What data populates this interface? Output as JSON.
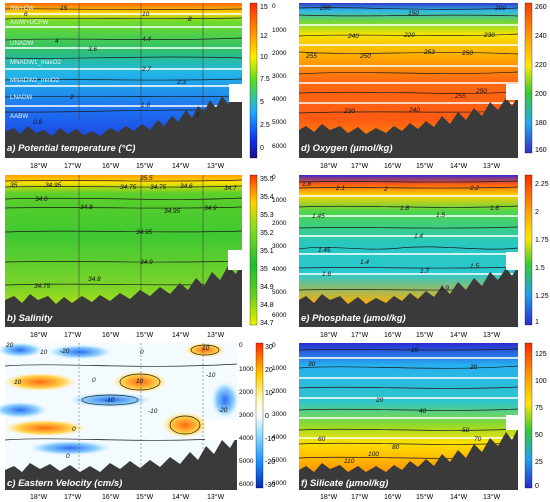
{
  "panels": [
    {
      "id": "temperature",
      "title": "a) Potential temperature (°C)",
      "colorbar": {
        "ticks": [
          "15",
          "12",
          "10",
          "7.5",
          "5",
          "2.5",
          "0"
        ],
        "stops": [
          "#ff2b00",
          "#ff9900",
          "#ffee00",
          "#55dd22",
          "#22aaff",
          "#1133ee",
          "#1a0a90"
        ]
      },
      "y_ticks": [],
      "x_ticks": [
        "18°W",
        "17°W",
        "16°W",
        "15°W",
        "14°W",
        "13°W"
      ],
      "water_masses": [
        "SW+CW",
        "AAIW+UCPW",
        "UNADW",
        "MNADW1_maxO2",
        "MNADW2_minO2",
        "LNADW",
        "AABW"
      ],
      "contour_labels": [
        "15",
        "10",
        "8",
        "4",
        "4.4",
        "3.6",
        "2.7",
        "2.3",
        "2",
        "1.8",
        "1",
        "0.8",
        "6"
      ]
    },
    {
      "id": "oxygen",
      "title": "d) Oxygen (µmol/kg)",
      "colorbar": {
        "ticks": [
          "260",
          "240",
          "220",
          "200",
          "180",
          "160"
        ],
        "stops": [
          "#ff3a00",
          "#ff9a00",
          "#ffe800",
          "#33cc33",
          "#22a8f0",
          "#3030c8"
        ]
      },
      "y_ticks": [
        "0",
        "1000",
        "2000",
        "3000",
        "4000",
        "5000",
        "6000"
      ],
      "x_ticks": [
        "18°W",
        "17°W",
        "16°W",
        "15°W",
        "14°W",
        "13°W"
      ],
      "contour_labels": [
        "200",
        "150",
        "200",
        "240",
        "220",
        "230",
        "255",
        "250",
        "253",
        "250",
        "255",
        "250",
        "230",
        "240"
      ]
    },
    {
      "id": "salinity",
      "title": "b) Salinity",
      "colorbar": {
        "ticks": [
          "35.5",
          "35.4",
          "35.3",
          "35.2",
          "35.1",
          "35",
          "34.9",
          "34.8",
          "34.7"
        ],
        "stops": [
          "#ff3300",
          "#ffd400",
          "#88dd22",
          "#22bb33",
          "#33cc33",
          "#99dd22",
          "#eeee00"
        ]
      },
      "y_ticks": [],
      "x_ticks": [
        "18°W",
        "17°W",
        "16°W",
        "15°W",
        "14°W",
        "13°W"
      ],
      "contour_labels": [
        "35.5",
        "35",
        "34.95",
        "34.75",
        "34.6",
        "34.75",
        "34.6",
        "34.7",
        "34.8",
        "34.95",
        "34.9",
        "34.95",
        "34.9",
        "34.8",
        "34.75"
      ]
    },
    {
      "id": "phosphate",
      "title": "e) Phosphate (µmol/kg)",
      "colorbar": {
        "ticks": [
          "2.25",
          "2",
          "1.75",
          "1.5",
          "1.25",
          "1"
        ],
        "stops": [
          "#ff2a00",
          "#ff9900",
          "#ffe600",
          "#33cc33",
          "#1fa0f0",
          "#2a2ad0"
        ]
      },
      "y_ticks": [
        "0",
        "1000",
        "2000",
        "3000",
        "4000",
        "5000",
        "6000"
      ],
      "x_ticks": [
        "18°W",
        "17°W",
        "16°W",
        "15°W",
        "14°W",
        "13°W"
      ],
      "contour_labels": [
        "1.8",
        "2.1",
        "2",
        "2.2",
        "1.8",
        "1.45",
        "1.5",
        "1.4",
        "1.45",
        "1.4",
        "1.6",
        "1.7",
        "1.5",
        "1.9",
        "1.6"
      ]
    },
    {
      "id": "velocity",
      "title": "c) Eastern Velocity (cm/s)",
      "colorbar": {
        "ticks": [
          "30",
          "20",
          "10",
          "0",
          "-10",
          "-20",
          "-30"
        ],
        "stops": [
          "#ff2a00",
          "#ffcc00",
          "#ffffcc",
          "#ffffff",
          "#99e0ff",
          "#1a8fff",
          "#0a2ab0"
        ]
      },
      "y_ticks": [
        "0",
        "1000",
        "2000",
        "3000",
        "4000",
        "5000",
        "6000"
      ],
      "x_ticks": [
        "18°W",
        "17°W",
        "16°W",
        "15°W",
        "14°W",
        "13°W"
      ],
      "contour_labels": [
        "20",
        "10",
        "0",
        "-20",
        "10",
        "0",
        "-10",
        "-10",
        "10",
        "0",
        "-10",
        "10",
        "-20",
        "0"
      ]
    },
    {
      "id": "silicate",
      "title": "f) Silicate (µmol/kg)",
      "colorbar": {
        "ticks": [
          "125",
          "100",
          "75",
          "50",
          "25",
          "0"
        ],
        "stops": [
          "#ff2a00",
          "#ff9900",
          "#ffe600",
          "#33cc33",
          "#1fa0f0",
          "#2a2ad0"
        ]
      },
      "y_ticks": [
        "0",
        "1000",
        "2000",
        "3000",
        "4000",
        "5000",
        "6000"
      ],
      "x_ticks": [
        "18°W",
        "17°W",
        "16°W",
        "15°W",
        "14°W",
        "13°W"
      ],
      "contour_labels": [
        "10",
        "30",
        "20",
        "20",
        "40",
        "50",
        "60",
        "70",
        "80",
        "100",
        "110"
      ]
    }
  ]
}
